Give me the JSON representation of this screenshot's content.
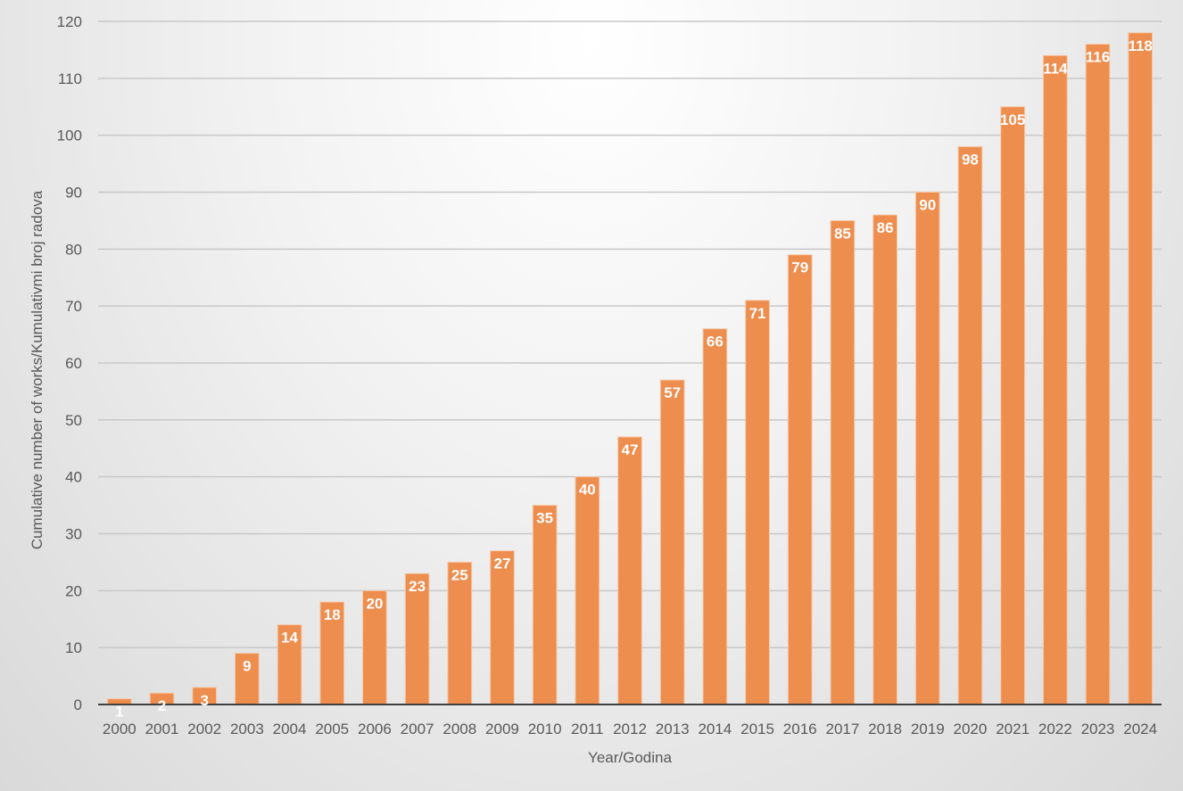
{
  "chart_data": {
    "type": "bar",
    "categories": [
      "2000",
      "2001",
      "2002",
      "2003",
      "2004",
      "2005",
      "2006",
      "2007",
      "2008",
      "2009",
      "2010",
      "2011",
      "2012",
      "2013",
      "2014",
      "2015",
      "2016",
      "2017",
      "2018",
      "2019",
      "2020",
      "2021",
      "2022",
      "2023",
      "2024"
    ],
    "values": [
      1,
      2,
      3,
      9,
      14,
      18,
      20,
      23,
      25,
      27,
      35,
      40,
      47,
      57,
      66,
      71,
      79,
      85,
      86,
      90,
      98,
      105,
      114,
      116,
      118
    ],
    "title": "",
    "xlabel": "Year/Godina",
    "ylabel": "Cumulative number of works/Kumulativmi broj radova",
    "ylim": [
      0,
      120
    ],
    "yticks": [
      0,
      10,
      20,
      30,
      40,
      50,
      60,
      70,
      80,
      90,
      100,
      110,
      120
    ],
    "grid": true,
    "legend": "none",
    "data_labels": true,
    "colors": {
      "bar": "#ed8d4e",
      "bar_edge": "#f6c9a8",
      "grid": "#c8c8c8",
      "axis": "#404040",
      "text": "#595959",
      "data_label": "#ffffff"
    }
  }
}
